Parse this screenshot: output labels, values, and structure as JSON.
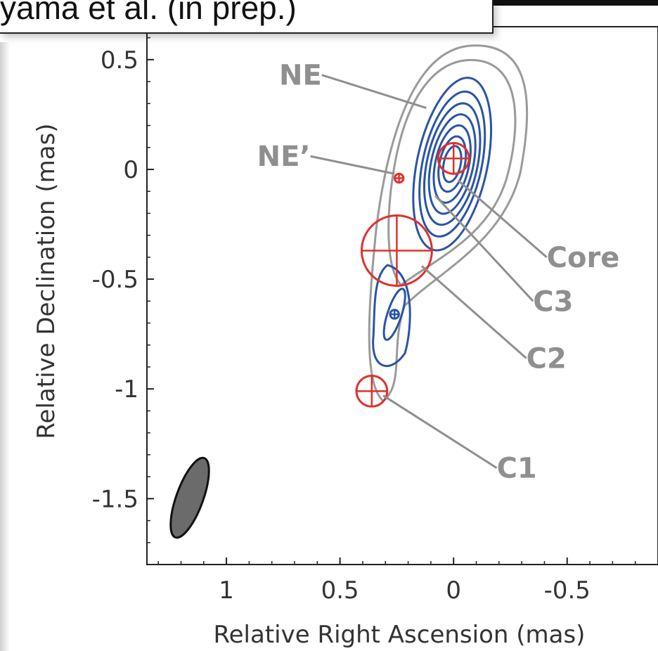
{
  "banner": {
    "text": "yama et al. (in prep.)"
  },
  "chart_data": {
    "type": "scatter",
    "xlabel": "Relative Right Ascension (mas)",
    "ylabel": "Relative Declination (mas)",
    "xlim": [
      1.35,
      -0.9
    ],
    "ylim": [
      -1.8,
      0.65
    ],
    "x_ticks": [
      {
        "value": 1,
        "label": "1"
      },
      {
        "value": 0.5,
        "label": "0.5"
      },
      {
        "value": 0,
        "label": "0"
      },
      {
        "value": -0.5,
        "label": "-0.5"
      }
    ],
    "y_ticks": [
      {
        "value": 0.5,
        "label": "0.5"
      },
      {
        "value": 0,
        "label": "0"
      },
      {
        "value": -0.5,
        "label": "-0.5"
      },
      {
        "value": -1,
        "label": "-1"
      },
      {
        "value": -1.5,
        "label": "-1.5"
      }
    ],
    "components": [
      {
        "name": "Core",
        "x": 0.0,
        "y": 0.05,
        "size": 0.07
      },
      {
        "name": "NE'",
        "x": 0.24,
        "y": -0.04,
        "size": 0.02
      },
      {
        "name": "C2",
        "x": 0.25,
        "y": -0.37,
        "size": 0.16
      },
      {
        "name": "C3",
        "x": 0.26,
        "y": -0.66,
        "size": 0.02
      },
      {
        "name": "C1",
        "x": 0.36,
        "y": -1.01,
        "size": 0.07
      }
    ],
    "labels": [
      {
        "text": "NE",
        "x": 0.58,
        "y": 0.43,
        "to_x": 0.12,
        "to_y": 0.28
      },
      {
        "text": "NE’",
        "x": 0.63,
        "y": 0.06,
        "to_x": 0.26,
        "to_y": -0.02
      },
      {
        "text": "Core",
        "x": -0.41,
        "y": -0.4,
        "to_x": -0.02,
        "to_y": -0.05
      },
      {
        "text": "C3",
        "x": -0.35,
        "y": -0.6,
        "to_x": 0.08,
        "to_y": -0.12
      },
      {
        "text": "C2",
        "x": -0.32,
        "y": -0.86,
        "to_x": 0.14,
        "to_y": -0.44
      },
      {
        "text": "C1",
        "x": -0.19,
        "y": -1.36,
        "to_x": 0.31,
        "to_y": -1.03
      }
    ],
    "colors": {
      "gray_contour": "#9a9a9a",
      "blue_contour": "#2a55a6",
      "component": "#e0312b",
      "label": "#8f8f8f",
      "beam": "#6b6b6b"
    }
  }
}
